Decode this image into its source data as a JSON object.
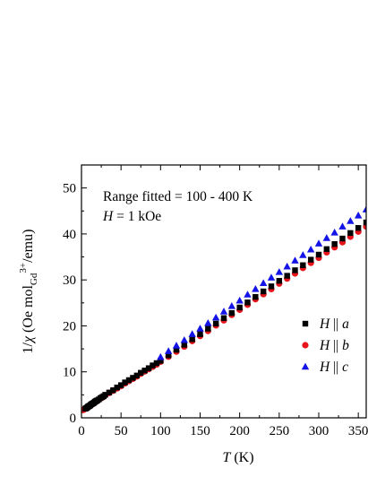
{
  "chart_data": {
    "type": "scatter",
    "xlabel": {
      "var": "T",
      "unit": " (K)"
    },
    "ylabel": {
      "prefix": "1/",
      "var": "χ",
      "mid": " (Oe mol",
      "sub": "Gd",
      "sup": "3+",
      "suffix": "/emu)"
    },
    "xlim": [
      0,
      360
    ],
    "ylim": [
      0,
      55
    ],
    "x_ticks": [
      0,
      50,
      100,
      150,
      200,
      250,
      300,
      350
    ],
    "y_ticks": [
      0,
      10,
      20,
      30,
      40,
      50
    ],
    "grid": false,
    "legend_position": "right-middle",
    "annotations": {
      "line1": "Range fitted = 100 - 400 K",
      "line2_var": "H",
      "line2_rest": " = 1 kOe"
    },
    "series": [
      {
        "label_var": "H",
        "label_sep": " || ",
        "label_axis": "a",
        "marker": "square",
        "color": "#000000",
        "x": [
          5,
          6,
          7,
          8,
          9,
          10,
          11,
          12,
          13,
          14,
          15,
          16,
          17,
          18,
          19,
          20,
          22,
          24,
          26,
          28,
          30,
          35,
          40,
          45,
          50,
          55,
          60,
          65,
          70,
          75,
          80,
          85,
          90,
          95,
          100,
          110,
          120,
          130,
          140,
          150,
          160,
          170,
          180,
          190,
          200,
          210,
          220,
          230,
          240,
          250,
          260,
          270,
          280,
          290,
          300,
          310,
          320,
          330,
          340,
          350,
          360
        ],
        "y": [
          2.0,
          2.1,
          2.2,
          2.4,
          2.5,
          2.6,
          2.7,
          2.9,
          3.0,
          3.1,
          3.2,
          3.3,
          3.5,
          3.6,
          3.7,
          3.8,
          4.0,
          4.3,
          4.5,
          4.7,
          5.0,
          5.5,
          6.0,
          6.6,
          7.1,
          7.7,
          8.2,
          8.7,
          9.2,
          9.8,
          10.3,
          10.8,
          11.4,
          11.9,
          12.4,
          13.6,
          14.8,
          15.9,
          17.1,
          18.2,
          19.4,
          20.5,
          21.7,
          22.8,
          24.0,
          25.1,
          26.3,
          27.5,
          28.6,
          29.8,
          30.9,
          32.1,
          33.2,
          34.4,
          35.5,
          36.7,
          37.8,
          39.0,
          40.2,
          41.3,
          42.5
        ]
      },
      {
        "label_var": "H",
        "label_sep": " || ",
        "label_axis": "b",
        "marker": "circle",
        "color": "#e8141b",
        "x": [
          2,
          3,
          4,
          5,
          6,
          7,
          8,
          9,
          10,
          11,
          12,
          13,
          14,
          15,
          16,
          17,
          18,
          19,
          20,
          22,
          24,
          26,
          28,
          30,
          35,
          40,
          45,
          50,
          55,
          60,
          65,
          70,
          75,
          80,
          85,
          90,
          95,
          100,
          110,
          120,
          130,
          140,
          150,
          160,
          170,
          180,
          190,
          200,
          210,
          220,
          230,
          240,
          250,
          260,
          270,
          280,
          290,
          300,
          310,
          320,
          330,
          340,
          350,
          360
        ],
        "y": [
          1.7,
          1.8,
          1.9,
          2.0,
          2.1,
          2.2,
          2.3,
          2.4,
          2.5,
          2.6,
          2.8,
          2.9,
          3.0,
          3.1,
          3.2,
          3.4,
          3.5,
          3.6,
          3.7,
          4.0,
          4.2,
          4.4,
          4.6,
          4.9,
          5.4,
          5.9,
          6.4,
          6.9,
          7.5,
          8.0,
          8.5,
          9.0,
          9.6,
          10.1,
          10.6,
          11.1,
          11.6,
          12.2,
          13.3,
          14.4,
          15.5,
          16.7,
          17.8,
          18.9,
          20.1,
          21.2,
          22.4,
          23.5,
          24.6,
          25.8,
          26.9,
          28.0,
          29.2,
          30.3,
          31.4,
          32.6,
          33.7,
          34.8,
          36.0,
          37.1,
          38.2,
          39.4,
          40.5,
          41.6
        ]
      },
      {
        "label_var": "H",
        "label_sep": " || ",
        "label_axis": "c",
        "marker": "triangle",
        "color": "#1414e6",
        "x": [
          100,
          110,
          120,
          130,
          140,
          150,
          160,
          170,
          180,
          190,
          200,
          210,
          220,
          230,
          240,
          250,
          260,
          270,
          280,
          290,
          300,
          310,
          320,
          330,
          340,
          350,
          360
        ],
        "y": [
          13.2,
          14.5,
          15.7,
          16.9,
          18.2,
          19.4,
          20.6,
          21.8,
          23.1,
          24.3,
          25.5,
          26.8,
          28.0,
          29.3,
          30.5,
          31.7,
          32.9,
          34.2,
          35.4,
          36.6,
          37.9,
          39.1,
          40.3,
          41.6,
          42.8,
          44.0,
          45.3
        ]
      }
    ]
  }
}
